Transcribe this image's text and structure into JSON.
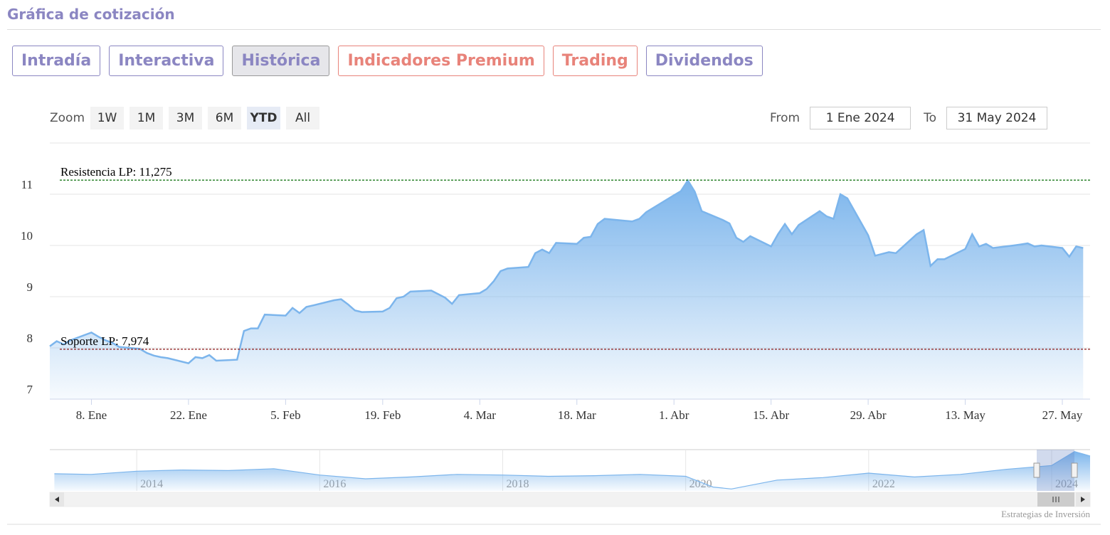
{
  "header": {
    "title": "Gráfica de cotización"
  },
  "tabs": [
    {
      "label": "Intradía",
      "color": "#8b86c2",
      "active": false
    },
    {
      "label": "Interactiva",
      "color": "#8b86c2",
      "active": false
    },
    {
      "label": "Histórica",
      "color": "#8b86c2",
      "active": true
    },
    {
      "label": "Indicadores Premium",
      "color": "#e8837a",
      "active": false
    },
    {
      "label": "Trading",
      "color": "#e8837a",
      "active": false
    },
    {
      "label": "Dividendos",
      "color": "#8b86c2",
      "active": false
    }
  ],
  "zoom": {
    "label": "Zoom",
    "buttons": [
      "1W",
      "1M",
      "3M",
      "6M",
      "YTD",
      "All"
    ],
    "active": 4
  },
  "range": {
    "from_label": "From",
    "from_value": "1 Ene 2024",
    "to_label": "To",
    "to_value": "31 May 2024"
  },
  "chart_data": {
    "type": "area",
    "color": "#7cb5ec",
    "x": [
      "2024-01-02",
      "2024-01-03",
      "2024-01-04",
      "2024-01-05",
      "2024-01-08",
      "2024-01-09",
      "2024-01-10",
      "2024-01-11",
      "2024-01-12",
      "2024-01-15",
      "2024-01-16",
      "2024-01-17",
      "2024-01-18",
      "2024-01-19",
      "2024-01-22",
      "2024-01-23",
      "2024-01-24",
      "2024-01-25",
      "2024-01-26",
      "2024-01-29",
      "2024-01-30",
      "2024-01-31",
      "2024-02-01",
      "2024-02-02",
      "2024-02-05",
      "2024-02-06",
      "2024-02-07",
      "2024-02-08",
      "2024-02-09",
      "2024-02-12",
      "2024-02-13",
      "2024-02-14",
      "2024-02-15",
      "2024-02-16",
      "2024-02-19",
      "2024-02-20",
      "2024-02-21",
      "2024-02-22",
      "2024-02-23",
      "2024-02-26",
      "2024-02-27",
      "2024-02-28",
      "2024-02-29",
      "2024-03-01",
      "2024-03-04",
      "2024-03-05",
      "2024-03-06",
      "2024-03-07",
      "2024-03-08",
      "2024-03-11",
      "2024-03-12",
      "2024-03-13",
      "2024-03-14",
      "2024-03-15",
      "2024-03-18",
      "2024-03-19",
      "2024-03-20",
      "2024-03-21",
      "2024-03-22",
      "2024-03-25",
      "2024-03-26",
      "2024-03-27",
      "2024-03-28",
      "2024-04-01",
      "2024-04-02",
      "2024-04-03",
      "2024-04-04",
      "2024-04-05",
      "2024-04-08",
      "2024-04-09",
      "2024-04-10",
      "2024-04-11",
      "2024-04-12",
      "2024-04-15",
      "2024-04-16",
      "2024-04-17",
      "2024-04-18",
      "2024-04-19",
      "2024-04-22",
      "2024-04-23",
      "2024-04-24",
      "2024-04-25",
      "2024-04-26",
      "2024-04-29",
      "2024-04-30",
      "2024-05-02",
      "2024-05-03",
      "2024-05-06",
      "2024-05-07",
      "2024-05-08",
      "2024-05-09",
      "2024-05-10",
      "2024-05-13",
      "2024-05-14",
      "2024-05-15",
      "2024-05-16",
      "2024-05-17",
      "2024-05-20",
      "2024-05-21",
      "2024-05-22",
      "2024-05-23",
      "2024-05-24",
      "2024-05-27",
      "2024-05-28",
      "2024-05-29",
      "2024-05-30"
    ],
    "values": [
      8.03,
      8.13,
      8.07,
      8.15,
      8.3,
      8.22,
      8.15,
      8.1,
      8.02,
      7.98,
      7.9,
      7.85,
      7.82,
      7.8,
      7.7,
      7.82,
      7.8,
      7.86,
      7.75,
      7.77,
      8.33,
      8.38,
      8.38,
      8.65,
      8.63,
      8.78,
      8.68,
      8.8,
      8.83,
      8.93,
      8.95,
      8.85,
      8.73,
      8.7,
      8.71,
      8.78,
      8.97,
      9.0,
      9.1,
      9.12,
      9.05,
      8.98,
      8.86,
      9.03,
      9.07,
      9.15,
      9.3,
      9.5,
      9.55,
      9.58,
      9.85,
      9.92,
      9.85,
      10.05,
      10.03,
      10.15,
      10.17,
      10.42,
      10.52,
      10.48,
      10.47,
      10.52,
      10.65,
      10.98,
      11.06,
      11.27,
      11.05,
      10.67,
      10.5,
      10.43,
      10.15,
      10.07,
      10.18,
      9.98,
      10.22,
      10.42,
      10.22,
      10.4,
      10.67,
      10.57,
      10.52,
      11.0,
      10.92,
      10.2,
      9.8,
      9.87,
      9.85,
      10.22,
      10.3,
      9.6,
      9.73,
      9.73,
      9.93,
      10.22,
      9.98,
      10.03,
      9.95,
      10.0,
      10.02,
      10.04,
      9.98,
      10.0,
      9.95,
      9.78,
      9.98,
      9.95
    ],
    "xlim": [
      "2024-01-02",
      "2024-05-31"
    ],
    "xticks": [
      {
        "value": "2024-01-08",
        "label": "8. Ene"
      },
      {
        "value": "2024-01-22",
        "label": "22. Ene"
      },
      {
        "value": "2024-02-05",
        "label": "5. Feb"
      },
      {
        "value": "2024-02-19",
        "label": "19. Feb"
      },
      {
        "value": "2024-03-04",
        "label": "4. Mar"
      },
      {
        "value": "2024-03-18",
        "label": "18. Mar"
      },
      {
        "value": "2024-04-01",
        "label": "1. Abr"
      },
      {
        "value": "2024-04-15",
        "label": "15. Abr"
      },
      {
        "value": "2024-04-29",
        "label": "29. Abr"
      },
      {
        "value": "2024-05-13",
        "label": "13. May"
      },
      {
        "value": "2024-05-27",
        "label": "27. May"
      }
    ],
    "ylim": [
      7,
      12
    ],
    "yticks": [
      7,
      8,
      9,
      10,
      11
    ],
    "grid": true,
    "plot_lines": [
      {
        "label": "Resistencia LP: 11,275",
        "value": 11.275,
        "color": "#1d7a1d"
      },
      {
        "label": "Soporte LP: 7,974",
        "value": 7.974,
        "color": "#8b1a1a"
      }
    ]
  },
  "navigator": {
    "x": [
      2013.1,
      2013.5,
      2014.0,
      2014.5,
      2015.0,
      2015.5,
      2016.0,
      2016.5,
      2017.0,
      2017.5,
      2018.0,
      2018.5,
      2019.0,
      2019.5,
      2020.0,
      2020.3,
      2020.5,
      2021.0,
      2021.5,
      2022.0,
      2022.5,
      2023.0,
      2023.5,
      2024.0,
      2024.25,
      2024.42
    ],
    "values": [
      7.7,
      7.6,
      8.1,
      8.3,
      8.2,
      8.5,
      7.5,
      6.9,
      7.2,
      7.6,
      7.5,
      7.3,
      7.4,
      7.6,
      7.3,
      5.6,
      5.3,
      6.7,
      7.1,
      7.8,
      7.2,
      7.6,
      8.4,
      9.0,
      11.2,
      10.5
    ],
    "xlim": [
      2013.05,
      2024.42
    ],
    "ylim": [
      5,
      11.5
    ],
    "xticks": [
      2014,
      2016,
      2018,
      2020,
      2022,
      2024
    ]
  },
  "credit": "Estrategias de Inversión"
}
